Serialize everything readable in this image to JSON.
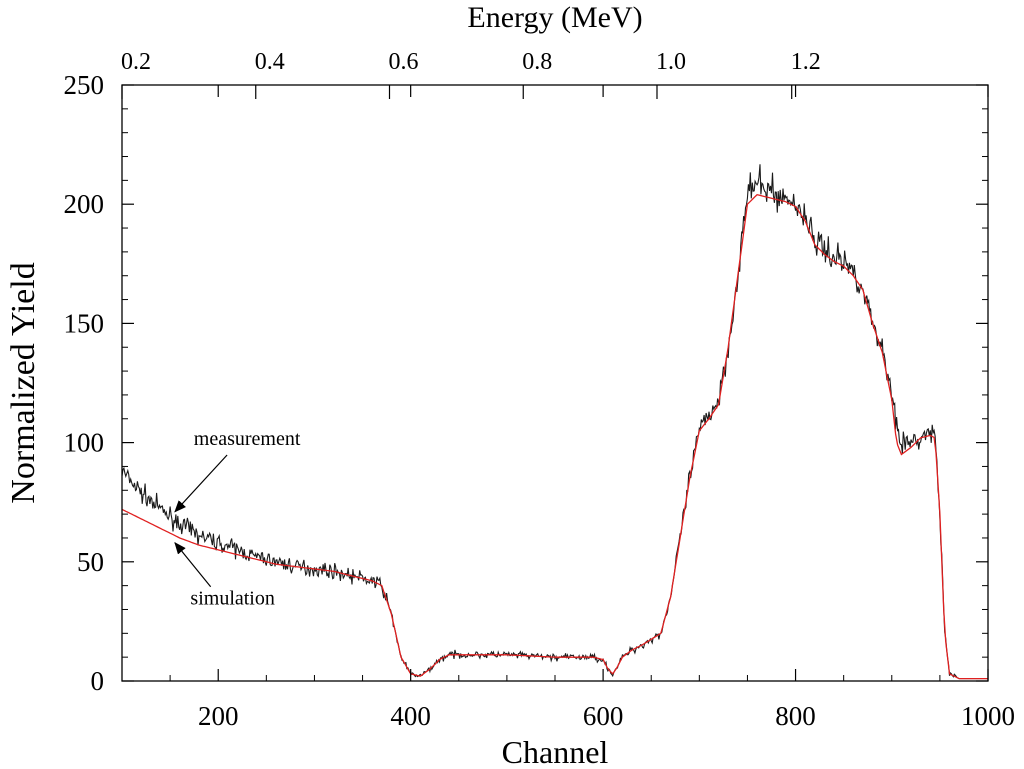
{
  "chart_data": {
    "type": "line",
    "title": "",
    "xlabel": "Channel",
    "ylabel": "Normalized Yield",
    "top_axis_label": "Energy (MeV)",
    "xlim": [
      100,
      1000
    ],
    "ylim": [
      0,
      250
    ],
    "x_ticks": [
      200,
      400,
      600,
      800,
      1000
    ],
    "x_tick_labels": [
      "200",
      "400",
      "600",
      "800",
      "1000"
    ],
    "y_ticks": [
      0,
      50,
      100,
      150,
      200,
      250
    ],
    "y_tick_labels": [
      "0",
      "50",
      "100",
      "150",
      "200",
      "250"
    ],
    "top_ticks_channel": [
      100,
      239,
      378,
      517,
      656,
      796
    ],
    "top_tick_labels": [
      "0.2",
      "0.4",
      "0.6",
      "0.8",
      "1.0",
      "1.2"
    ],
    "grid": false,
    "series": [
      {
        "name": "measurement",
        "color": "#1a1a1a",
        "noisy": true,
        "x": [
          100,
          120,
          140,
          160,
          180,
          200,
          220,
          240,
          260,
          280,
          300,
          320,
          340,
          360,
          370,
          380,
          390,
          400,
          410,
          420,
          430,
          440,
          450,
          500,
          550,
          590,
          600,
          605,
          610,
          615,
          620,
          630,
          640,
          660,
          670,
          680,
          690,
          700,
          710,
          720,
          730,
          740,
          750,
          760,
          770,
          780,
          790,
          800,
          810,
          820,
          830,
          840,
          850,
          860,
          870,
          880,
          890,
          900,
          905,
          910,
          920,
          930,
          940,
          945,
          950,
          955,
          960,
          970,
          1000
        ],
        "y": [
          88,
          79,
          72,
          66,
          61,
          58,
          55,
          52,
          50,
          48,
          47,
          46,
          44,
          42,
          40,
          28,
          10,
          3,
          2,
          5,
          9,
          11,
          11,
          11,
          10,
          10,
          9,
          5,
          3,
          6,
          10,
          13,
          15,
          20,
          35,
          60,
          85,
          105,
          112,
          118,
          140,
          170,
          205,
          208,
          207,
          204,
          202,
          200,
          195,
          185,
          181,
          178,
          176,
          172,
          165,
          150,
          140,
          120,
          110,
          100,
          99,
          102,
          104,
          103,
          70,
          20,
          3,
          1,
          1
        ]
      },
      {
        "name": "simulation",
        "color": "#e02020",
        "noisy": false,
        "x": [
          100,
          120,
          140,
          160,
          180,
          200,
          220,
          240,
          260,
          280,
          300,
          320,
          340,
          360,
          370,
          380,
          390,
          400,
          410,
          420,
          430,
          440,
          450,
          500,
          550,
          590,
          600,
          605,
          610,
          615,
          620,
          630,
          640,
          660,
          670,
          680,
          690,
          700,
          710,
          720,
          730,
          740,
          750,
          760,
          770,
          780,
          790,
          800,
          810,
          820,
          830,
          840,
          850,
          860,
          870,
          880,
          890,
          900,
          905,
          910,
          920,
          930,
          940,
          945,
          950,
          955,
          960,
          970,
          1000
        ],
        "y": [
          72,
          68,
          64,
          60,
          57,
          55,
          53,
          51,
          49,
          48,
          47,
          46,
          44,
          42,
          40,
          28,
          10,
          3,
          2,
          5,
          9,
          11,
          11,
          11,
          10,
          10,
          9,
          5,
          3,
          6,
          10,
          13,
          15,
          20,
          35,
          60,
          85,
          105,
          110,
          116,
          140,
          170,
          200,
          204,
          203,
          202,
          201,
          199,
          193,
          183,
          179,
          176,
          174,
          170,
          164,
          150,
          138,
          118,
          100,
          95,
          98,
          102,
          103,
          102,
          70,
          20,
          3,
          1,
          1
        ]
      }
    ],
    "annotations": [
      {
        "text": "measurement",
        "x": 230,
        "y": 99,
        "arrow_to": [
          155,
          71
        ]
      },
      {
        "text": "simulation",
        "x": 215,
        "y": 32,
        "arrow_to": [
          155,
          58
        ]
      }
    ]
  }
}
